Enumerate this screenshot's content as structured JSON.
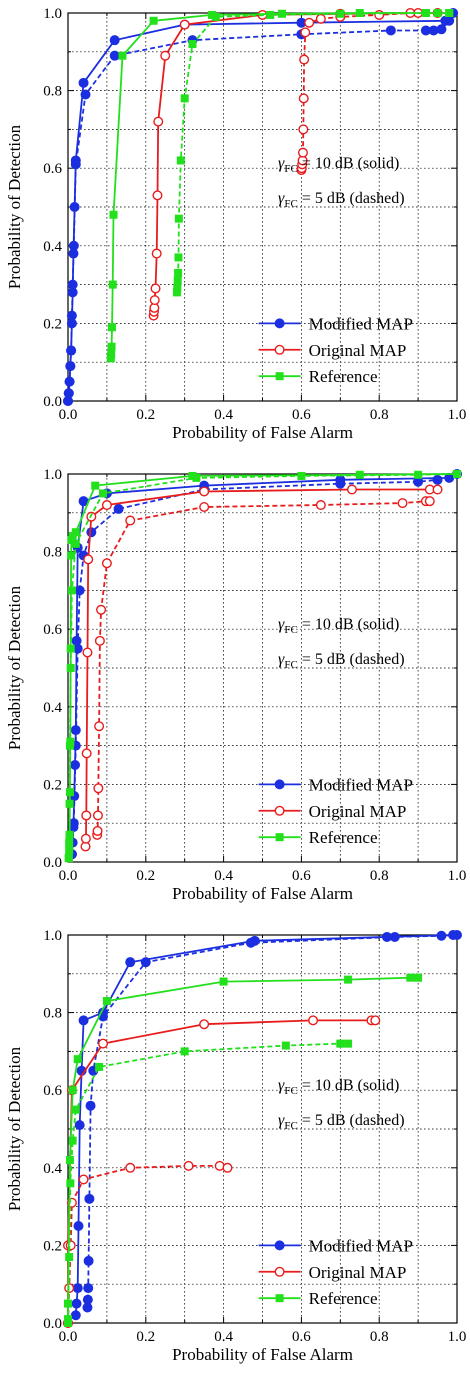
{
  "colors": {
    "modified_map": "#1c2fe0",
    "original_map": "#e81c1c",
    "reference": "#22e01c"
  },
  "chart_data": [
    {
      "type": "line",
      "xlabel": "Probability of False Alarm",
      "ylabel": "Probability of Detection",
      "xlim": [
        0,
        1
      ],
      "ylim": [
        0,
        1
      ],
      "xticks": [
        "0.0",
        "0.2",
        "0.4",
        "0.6",
        "0.8",
        "1.0"
      ],
      "yticks": [
        "0.0",
        "0.2",
        "0.4",
        "0.6",
        "0.8",
        "1.0"
      ],
      "grid": true,
      "annotations": {
        "solid_prefix": "γ",
        "solid_sub": "FC",
        "solid_text": " = 10 dB (solid)",
        "dashed_prefix": "γ",
        "dashed_sub": "FC",
        "dashed_text": " = 5 dB (dashed)"
      },
      "legend": {
        "placement": "lower-right",
        "entries": [
          "Modified MAP",
          "Original MAP",
          "Reference"
        ]
      },
      "series": [
        {
          "name": "Modified MAP",
          "style": "solid",
          "marker": "circle-filled",
          "color": "#1c2fe0",
          "x": [
            0,
            0.002,
            0.004,
            0.006,
            0.008,
            0.01,
            0.012,
            0.014,
            0.017,
            0.02,
            0.04,
            0.12,
            0.3,
            0.6,
            0.97,
            0.99
          ],
          "y": [
            0,
            0.02,
            0.05,
            0.09,
            0.13,
            0.2,
            0.28,
            0.38,
            0.5,
            0.62,
            0.82,
            0.93,
            0.97,
            0.975,
            0.98,
            1.0
          ]
        },
        {
          "name": "Modified MAP",
          "style": "dashed",
          "marker": "circle-filled",
          "color": "#1c2fe0",
          "x": [
            0,
            0.002,
            0.004,
            0.006,
            0.008,
            0.01,
            0.012,
            0.015,
            0.02,
            0.045,
            0.12,
            0.32,
            0.6,
            0.83,
            0.92,
            0.94,
            0.96,
            0.98
          ],
          "y": [
            0,
            0.02,
            0.05,
            0.09,
            0.13,
            0.22,
            0.3,
            0.4,
            0.61,
            0.79,
            0.89,
            0.93,
            0.945,
            0.955,
            0.955,
            0.955,
            0.958,
            0.98
          ]
        },
        {
          "name": "Original MAP",
          "style": "solid",
          "marker": "circle-open",
          "color": "#e81c1c",
          "x": [
            0.22,
            0.221,
            0.222,
            0.223,
            0.225,
            0.228,
            0.23,
            0.232,
            0.25,
            0.3,
            0.5,
            0.7,
            0.9,
            0.95
          ],
          "y": [
            0.22,
            0.23,
            0.24,
            0.26,
            0.29,
            0.38,
            0.53,
            0.72,
            0.89,
            0.97,
            0.995,
            0.998,
            1.0,
            1.0
          ]
        },
        {
          "name": "Original MAP",
          "style": "dashed",
          "marker": "circle-open",
          "color": "#e81c1c",
          "x": [
            0.6,
            0.601,
            0.602,
            0.603,
            0.604,
            0.605,
            0.606,
            0.607,
            0.61,
            0.62,
            0.65,
            0.7,
            0.8,
            0.88
          ],
          "y": [
            0.595,
            0.6,
            0.61,
            0.62,
            0.64,
            0.7,
            0.78,
            0.88,
            0.95,
            0.975,
            0.985,
            0.99,
            0.995,
            1.0
          ]
        },
        {
          "name": "Reference",
          "style": "solid",
          "marker": "square-filled",
          "color": "#22e01c",
          "x": [
            0.11,
            0.111,
            0.112,
            0.113,
            0.115,
            0.117,
            0.14,
            0.22,
            0.37,
            0.55,
            0.75,
            0.92,
            0.95,
            0.98
          ],
          "y": [
            0.11,
            0.12,
            0.14,
            0.19,
            0.3,
            0.48,
            0.89,
            0.98,
            0.995,
            0.998,
            1.0,
            1.0,
            1.0,
            1.0
          ]
        },
        {
          "name": "Reference",
          "style": "dashed",
          "marker": "square-filled",
          "color": "#22e01c",
          "x": [
            0.28,
            0.281,
            0.282,
            0.283,
            0.284,
            0.285,
            0.29,
            0.3,
            0.32,
            0.38,
            0.52,
            0.7,
            0.92,
            0.98
          ],
          "y": [
            0.28,
            0.29,
            0.31,
            0.33,
            0.37,
            0.47,
            0.62,
            0.78,
            0.92,
            0.99,
            0.995,
            0.998,
            1.0,
            1.0
          ]
        }
      ]
    },
    {
      "type": "line",
      "xlabel": "Probability of False Alarm",
      "ylabel": "Probability of Detection",
      "xlim": [
        0,
        1
      ],
      "ylim": [
        0,
        1
      ],
      "xticks": [
        "0.0",
        "0.2",
        "0.4",
        "0.6",
        "0.8",
        "1.0"
      ],
      "yticks": [
        "0.0",
        "0.2",
        "0.4",
        "0.6",
        "0.8",
        "1.0"
      ],
      "grid": true,
      "annotations": {
        "solid_prefix": "γ",
        "solid_sub": "FC",
        "solid_text": " = 10 dB (solid)",
        "dashed_prefix": "γ",
        "dashed_sub": "FC",
        "dashed_text": " = 5 dB (dashed)"
      },
      "legend": {
        "placement": "lower-right",
        "entries": [
          "Modified MAP",
          "Original MAP",
          "Reference"
        ]
      },
      "series": [
        {
          "name": "Modified MAP",
          "style": "solid",
          "marker": "circle-filled",
          "color": "#1c2fe0",
          "x": [
            0.01,
            0.012,
            0.014,
            0.016,
            0.018,
            0.02,
            0.022,
            0.025,
            0.04,
            0.1,
            0.35,
            0.7,
            0.98,
            1.0
          ],
          "y": [
            0.02,
            0.05,
            0.09,
            0.17,
            0.25,
            0.34,
            0.57,
            0.81,
            0.93,
            0.95,
            0.97,
            0.985,
            0.99,
            1.0
          ]
        },
        {
          "name": "Modified MAP",
          "style": "dashed",
          "marker": "circle-filled",
          "color": "#1c2fe0",
          "x": [
            0.01,
            0.015,
            0.02,
            0.025,
            0.03,
            0.04,
            0.06,
            0.13,
            0.35,
            0.7,
            0.9,
            0.95
          ],
          "y": [
            0.02,
            0.1,
            0.3,
            0.55,
            0.7,
            0.79,
            0.85,
            0.91,
            0.96,
            0.975,
            0.98,
            0.985
          ]
        },
        {
          "name": "Original MAP",
          "style": "solid",
          "marker": "circle-open",
          "color": "#e81c1c",
          "x": [
            0.045,
            0.046,
            0.047,
            0.048,
            0.05,
            0.052,
            0.06,
            0.1,
            0.35,
            0.73,
            0.93,
            0.95
          ],
          "y": [
            0.04,
            0.06,
            0.12,
            0.28,
            0.54,
            0.78,
            0.89,
            0.92,
            0.955,
            0.96,
            0.96,
            0.96
          ]
        },
        {
          "name": "Original MAP",
          "style": "dashed",
          "marker": "circle-open",
          "color": "#e81c1c",
          "x": [
            0.075,
            0.076,
            0.077,
            0.078,
            0.08,
            0.082,
            0.085,
            0.1,
            0.16,
            0.35,
            0.65,
            0.86,
            0.92,
            0.93
          ],
          "y": [
            0.07,
            0.08,
            0.12,
            0.19,
            0.35,
            0.57,
            0.65,
            0.77,
            0.88,
            0.915,
            0.92,
            0.925,
            0.93,
            0.93
          ]
        },
        {
          "name": "Reference",
          "style": "solid",
          "marker": "square-filled",
          "color": "#22e01c",
          "x": [
            0.002,
            0.003,
            0.004,
            0.005,
            0.006,
            0.007,
            0.008,
            0.009,
            0.012,
            0.02,
            0.07,
            0.32,
            0.75,
            1.0
          ],
          "y": [
            0.01,
            0.03,
            0.07,
            0.18,
            0.31,
            0.55,
            0.79,
            0.83,
            0.84,
            0.85,
            0.97,
            0.995,
            0.998,
            1.0
          ]
        },
        {
          "name": "Reference",
          "style": "dashed",
          "marker": "square-filled",
          "color": "#22e01c",
          "x": [
            0.002,
            0.003,
            0.004,
            0.005,
            0.007,
            0.01,
            0.02,
            0.09,
            0.33,
            0.6,
            0.9,
            1.0
          ],
          "y": [
            0.01,
            0.05,
            0.15,
            0.3,
            0.5,
            0.7,
            0.82,
            0.95,
            0.99,
            0.995,
            0.998,
            1.0
          ]
        }
      ]
    },
    {
      "type": "line",
      "xlabel": "Probability of False Alarm",
      "ylabel": "Probability of Detection",
      "xlim": [
        0,
        1
      ],
      "ylim": [
        0,
        1
      ],
      "xticks": [
        "0.0",
        "0.2",
        "0.4",
        "0.6",
        "0.8",
        "1.0"
      ],
      "yticks": [
        "0.0",
        "0.2",
        "0.4",
        "0.6",
        "0.8",
        "1.0"
      ],
      "grid": true,
      "annotations": {
        "solid_prefix": "γ",
        "solid_sub": "FC",
        "solid_text": " = 10 dB (solid)",
        "dashed_prefix": "γ",
        "dashed_sub": "FC",
        "dashed_text": " = 5 dB (dashed)"
      },
      "legend": {
        "placement": "lower-right",
        "entries": [
          "Modified MAP",
          "Original MAP",
          "Reference"
        ]
      },
      "series": [
        {
          "name": "Modified MAP",
          "style": "solid",
          "marker": "circle-filled",
          "color": "#1c2fe0",
          "x": [
            0.02,
            0.022,
            0.025,
            0.027,
            0.03,
            0.035,
            0.04,
            0.09,
            0.16,
            0.48,
            0.82,
            1.0
          ],
          "y": [
            0.02,
            0.05,
            0.09,
            0.25,
            0.51,
            0.65,
            0.78,
            0.8,
            0.93,
            0.985,
            0.995,
            1.0
          ]
        },
        {
          "name": "Modified MAP",
          "style": "dashed",
          "marker": "circle-filled",
          "color": "#1c2fe0",
          "x": [
            0.05,
            0.051,
            0.052,
            0.053,
            0.055,
            0.058,
            0.065,
            0.09,
            0.2,
            0.47,
            0.84,
            0.96,
            0.99
          ],
          "y": [
            0.04,
            0.06,
            0.09,
            0.16,
            0.32,
            0.56,
            0.65,
            0.79,
            0.93,
            0.98,
            0.995,
            0.998,
            1.0
          ]
        },
        {
          "name": "Original MAP",
          "style": "solid",
          "marker": "circle-open",
          "color": "#e81c1c",
          "x": [
            0.0,
            0.0,
            0.01,
            0.09,
            0.35,
            0.63,
            0.78,
            0.79
          ],
          "y": [
            0.0,
            0.2,
            0.6,
            0.72,
            0.77,
            0.78,
            0.78,
            0.78
          ]
        },
        {
          "name": "Original MAP",
          "style": "dashed",
          "marker": "circle-open",
          "color": "#e81c1c",
          "x": [
            0.0,
            0.003,
            0.007,
            0.01,
            0.04,
            0.16,
            0.31,
            0.39,
            0.41
          ],
          "y": [
            0.0,
            0.09,
            0.2,
            0.31,
            0.37,
            0.4,
            0.405,
            0.405,
            0.4
          ]
        },
        {
          "name": "Reference",
          "style": "solid",
          "marker": "square-filled",
          "color": "#22e01c",
          "x": [
            0.0,
            0.0,
            0.005,
            0.012,
            0.025,
            0.1,
            0.4,
            0.72,
            0.88,
            0.9
          ],
          "y": [
            0.0,
            0.05,
            0.42,
            0.6,
            0.68,
            0.83,
            0.88,
            0.885,
            0.89,
            0.89
          ]
        },
        {
          "name": "Reference",
          "style": "dashed",
          "marker": "square-filled",
          "color": "#22e01c",
          "x": [
            0.0,
            0.0,
            0.003,
            0.006,
            0.012,
            0.02,
            0.08,
            0.3,
            0.56,
            0.7,
            0.72
          ],
          "y": [
            0.0,
            0.01,
            0.17,
            0.36,
            0.47,
            0.55,
            0.66,
            0.7,
            0.715,
            0.72,
            0.72
          ]
        }
      ]
    }
  ]
}
